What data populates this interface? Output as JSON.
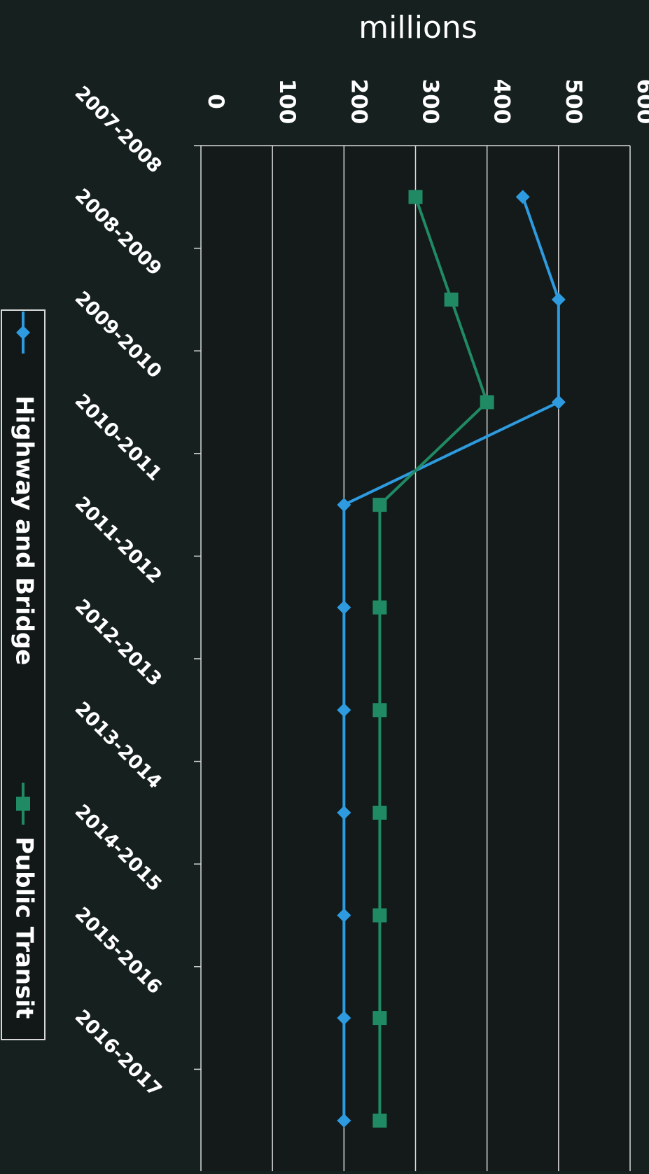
{
  "chart_data": {
    "type": "line",
    "orientation": "rotated 90 degrees clockwise",
    "ylabel": "millions",
    "ylim": [
      0,
      600
    ],
    "yticks": [
      "0",
      "100",
      "200",
      "300",
      "400",
      "500",
      "600"
    ],
    "categories": [
      "2007-2008",
      "2008-2009",
      "2009-2010",
      "2010-2011",
      "2011-2012",
      "2012-2013",
      "2013-2014",
      "2014-2015",
      "2015-2016",
      "2016-2017"
    ],
    "grid": true,
    "legend": "bottom",
    "series": [
      {
        "name": "Highway and Bridge",
        "color": "#2e9be0",
        "marker": "diamond",
        "values": [
          450,
          500,
          500,
          200,
          200,
          200,
          200,
          200,
          200,
          200
        ]
      },
      {
        "name": "Public Transit",
        "color": "#1f8a64",
        "marker": "square",
        "values": [
          300,
          350,
          400,
          250,
          250,
          250,
          250,
          250,
          250,
          250
        ]
      }
    ]
  },
  "colors": {
    "background": "#16201f",
    "plot_background": "#131a19",
    "gridline": "#d8d8d8",
    "text": "#ffffff"
  }
}
